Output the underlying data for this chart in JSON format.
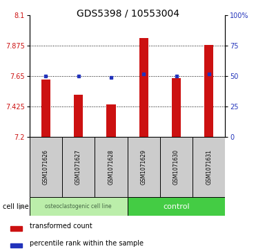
{
  "title": "GDS5398 / 10553004",
  "samples": [
    "GSM1071626",
    "GSM1071627",
    "GSM1071628",
    "GSM1071629",
    "GSM1071630",
    "GSM1071631"
  ],
  "red_values": [
    7.625,
    7.51,
    7.44,
    7.93,
    7.635,
    7.88
  ],
  "blue_values": [
    7.648,
    7.648,
    7.638,
    7.662,
    7.648,
    7.662
  ],
  "y_min": 7.2,
  "y_max": 8.1,
  "y_ticks_left": [
    7.2,
    7.425,
    7.65,
    7.875,
    8.1
  ],
  "y_ticks_right_pct": [
    0,
    25,
    50,
    75,
    100
  ],
  "right_y_labels": [
    "0",
    "25",
    "50",
    "75",
    "100%"
  ],
  "bar_bottom": 7.2,
  "bar_color": "#cc1111",
  "dot_color": "#2233bb",
  "group1_label": "osteoclastogenic cell line",
  "group2_label": "control",
  "cell_line_label": "cell line",
  "legend_red": "transformed count",
  "legend_blue": "percentile rank within the sample",
  "group1_indices": [
    0,
    1,
    2
  ],
  "group2_indices": [
    3,
    4,
    5
  ],
  "group_bg1": "#bbeeaa",
  "group_bg2": "#44cc44",
  "sample_bg": "#cccccc",
  "title_fontsize": 10,
  "tick_fontsize": 7,
  "sample_fontsize": 5.5,
  "group_fontsize": 6.5,
  "legend_fontsize": 7,
  "bar_width": 0.28
}
